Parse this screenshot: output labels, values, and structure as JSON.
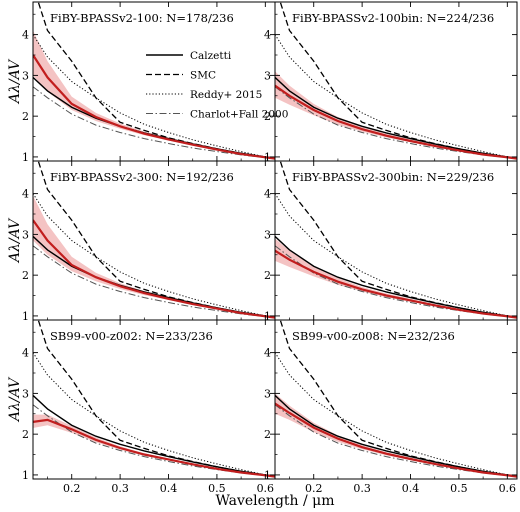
{
  "chart_data": {
    "type": "line",
    "xlabel": "Wavelength / μm",
    "ylabel": "Aλ/AV",
    "xlim": [
      0.12,
      0.62
    ],
    "ylim": [
      0.9,
      4.8
    ],
    "x_ticks": [
      0.2,
      0.3,
      0.4,
      0.5,
      0.6
    ],
    "x_tick_labels": [
      "0.2",
      "0.3",
      "0.4",
      "0.5",
      "0.6"
    ],
    "y_ticks": [
      1,
      2,
      3,
      4
    ],
    "y_tick_labels": [
      "1",
      "2",
      "3",
      "4"
    ],
    "grid": "2x3 panels, shared axes",
    "legend": {
      "placement": "top-right of first panel",
      "entries": [
        {
          "label": "Calzetti",
          "style": "solid"
        },
        {
          "label": "SMC",
          "style": "dashed"
        },
        {
          "label": "Reddy+ 2015",
          "style": "dotted"
        },
        {
          "label": "Charlot+Fall 2000",
          "style": "dashdot"
        }
      ]
    },
    "colors": {
      "reference": "#000000",
      "fit": "#c21e1e",
      "band": "#f2b8b8"
    },
    "reference_curves": {
      "x": [
        0.12,
        0.15,
        0.2,
        0.25,
        0.3,
        0.35,
        0.4,
        0.45,
        0.5,
        0.55,
        0.6,
        0.62
      ],
      "calzetti": [
        2.95,
        2.62,
        2.22,
        1.95,
        1.75,
        1.59,
        1.45,
        1.32,
        1.2,
        1.09,
        1.0,
        0.97
      ],
      "smc": [
        5.2,
        4.1,
        3.35,
        2.45,
        1.85,
        1.65,
        1.47,
        1.33,
        1.2,
        1.09,
        1.0,
        0.97
      ],
      "reddy2015": [
        4.0,
        3.45,
        2.85,
        2.45,
        2.08,
        1.8,
        1.6,
        1.42,
        1.27,
        1.13,
        1.0,
        0.96
      ],
      "charlot_fall2000": [
        2.72,
        2.45,
        2.05,
        1.78,
        1.6,
        1.45,
        1.33,
        1.22,
        1.13,
        1.05,
        0.98,
        0.96
      ]
    },
    "panels": [
      {
        "title": "FiBY-BPASSv2-100:  N=178/236",
        "median": [
          3.5,
          2.95,
          2.3,
          1.98,
          1.75,
          1.57,
          1.43,
          1.3,
          1.18,
          1.07,
          0.99,
          0.96
        ],
        "band_lo": [
          3.0,
          2.6,
          2.15,
          1.88,
          1.69,
          1.53,
          1.4,
          1.28,
          1.16,
          1.06,
          0.98,
          0.95
        ],
        "band_hi": [
          4.1,
          3.35,
          2.48,
          2.08,
          1.82,
          1.62,
          1.47,
          1.33,
          1.21,
          1.09,
          1.0,
          0.97
        ]
      },
      {
        "title": "FiBY-BPASSv2-100bin:  N=224/236",
        "median": [
          2.75,
          2.5,
          2.15,
          1.88,
          1.68,
          1.52,
          1.39,
          1.27,
          1.16,
          1.06,
          0.99,
          0.96
        ],
        "band_lo": [
          2.45,
          2.28,
          2.02,
          1.79,
          1.62,
          1.48,
          1.36,
          1.25,
          1.14,
          1.05,
          0.98,
          0.95
        ],
        "band_hi": [
          3.1,
          2.75,
          2.3,
          1.98,
          1.75,
          1.57,
          1.43,
          1.3,
          1.18,
          1.08,
          1.0,
          0.97
        ]
      },
      {
        "title": "FiBY-BPASSv2-300:  N=192/236",
        "median": [
          3.35,
          2.85,
          2.25,
          1.95,
          1.73,
          1.56,
          1.42,
          1.29,
          1.18,
          1.07,
          0.99,
          0.96
        ],
        "band_lo": [
          2.85,
          2.5,
          2.1,
          1.85,
          1.66,
          1.51,
          1.39,
          1.27,
          1.16,
          1.06,
          0.98,
          0.95
        ],
        "band_hi": [
          3.95,
          3.25,
          2.45,
          2.06,
          1.8,
          1.61,
          1.46,
          1.32,
          1.2,
          1.09,
          1.0,
          0.97
        ]
      },
      {
        "title": "FiBY-BPASSv2-300bin:  N=229/236",
        "median": [
          2.6,
          2.38,
          2.08,
          1.84,
          1.65,
          1.5,
          1.38,
          1.26,
          1.15,
          1.06,
          0.99,
          0.96
        ],
        "band_lo": [
          2.35,
          2.2,
          1.97,
          1.76,
          1.6,
          1.46,
          1.35,
          1.24,
          1.13,
          1.05,
          0.98,
          0.95
        ],
        "band_hi": [
          2.9,
          2.6,
          2.22,
          1.93,
          1.71,
          1.55,
          1.42,
          1.29,
          1.17,
          1.07,
          1.0,
          0.97
        ]
      },
      {
        "title": "SB99-v00-z002:  N=233/236",
        "median": [
          2.3,
          2.35,
          2.12,
          1.86,
          1.66,
          1.5,
          1.38,
          1.26,
          1.15,
          1.06,
          0.99,
          0.96
        ],
        "band_lo": [
          2.15,
          2.22,
          2.03,
          1.8,
          1.62,
          1.47,
          1.36,
          1.24,
          1.14,
          1.05,
          0.98,
          0.95
        ],
        "band_hi": [
          2.48,
          2.48,
          2.2,
          1.92,
          1.7,
          1.53,
          1.4,
          1.28,
          1.16,
          1.07,
          1.0,
          0.97
        ]
      },
      {
        "title": "SB99-v00-z008:  N=232/236",
        "median": [
          2.75,
          2.52,
          2.16,
          1.89,
          1.68,
          1.52,
          1.39,
          1.27,
          1.16,
          1.06,
          0.99,
          0.96
        ],
        "band_lo": [
          2.5,
          2.35,
          2.05,
          1.81,
          1.63,
          1.48,
          1.36,
          1.25,
          1.14,
          1.05,
          0.98,
          0.95
        ],
        "band_hi": [
          3.0,
          2.7,
          2.28,
          1.97,
          1.73,
          1.56,
          1.42,
          1.29,
          1.18,
          1.07,
          1.0,
          0.97
        ]
      }
    ]
  }
}
